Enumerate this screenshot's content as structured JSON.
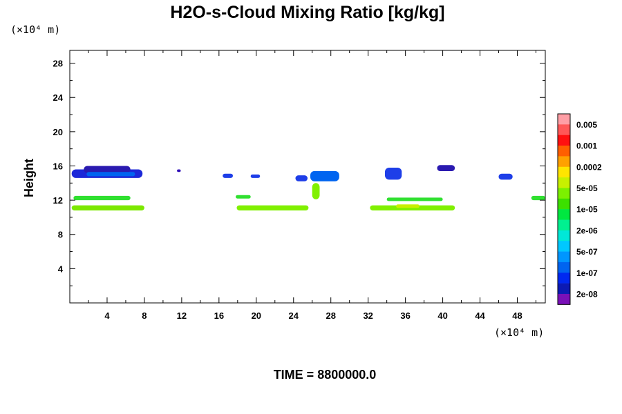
{
  "chart_data": {
    "type": "heatmap",
    "title": "H2O-s-Cloud Mixing Ratio [kg/kg]",
    "xlabel": "",
    "ylabel": "Height",
    "x_unit_label": "(×10⁴ m)",
    "y_unit_label": "(×10⁴ m)",
    "footer": "TIME = 8800000.0",
    "xlim": [
      0,
      51
    ],
    "ylim": [
      0,
      29.5
    ],
    "x_ticks": [
      "4",
      "8",
      "12",
      "16",
      "20",
      "24",
      "28",
      "32",
      "36",
      "40",
      "44",
      "48"
    ],
    "y_ticks": [
      "4",
      "8",
      "12",
      "16",
      "20",
      "24",
      "28"
    ],
    "x_tick_values": [
      4,
      8,
      12,
      16,
      20,
      24,
      28,
      32,
      36,
      40,
      44,
      48
    ],
    "y_tick_values": [
      4,
      8,
      12,
      16,
      20,
      24,
      28
    ],
    "colorbar": {
      "labels": [
        "0.005",
        "0.001",
        "0.0002",
        "5e-05",
        "1e-05",
        "2e-06",
        "5e-07",
        "1e-07",
        "2e-08"
      ],
      "colors": [
        "#ff9fa6",
        "#ff5858",
        "#ff1010",
        "#ff5f00",
        "#ffa100",
        "#ffe500",
        "#c8f000",
        "#7cf000",
        "#3ce000",
        "#00e840",
        "#00f090",
        "#00e8d8",
        "#00c8ff",
        "#0096ff",
        "#0064f0",
        "#0028f0",
        "#0c1ab4",
        "#7a10b8"
      ]
    },
    "regions": [
      {
        "x0": 0.2,
        "x1": 7.8,
        "y0": 14.6,
        "y1": 15.6,
        "level": "2e-08",
        "color": "#1c28d8"
      },
      {
        "x0": 1.5,
        "x1": 6.5,
        "y0": 15.2,
        "y1": 16.0,
        "level": "2e-08",
        "color": "#2a1ab0"
      },
      {
        "x0": 1.8,
        "x1": 7.0,
        "y0": 14.8,
        "y1": 15.3,
        "level": "1e-07",
        "color": "#0064f0"
      },
      {
        "x0": 11.5,
        "x1": 11.9,
        "y0": 15.3,
        "y1": 15.6,
        "level": "2e-08",
        "color": "#3010b8"
      },
      {
        "x0": 16.4,
        "x1": 17.5,
        "y0": 14.6,
        "y1": 15.1,
        "level": "1e-07",
        "color": "#1e3ee8"
      },
      {
        "x0": 19.4,
        "x1": 20.4,
        "y0": 14.6,
        "y1": 15.0,
        "level": "1e-07",
        "color": "#1e3ee8"
      },
      {
        "x0": 24.2,
        "x1": 25.5,
        "y0": 14.2,
        "y1": 14.9,
        "level": "1e-07",
        "color": "#1e3ee8"
      },
      {
        "x0": 25.8,
        "x1": 28.9,
        "y0": 14.2,
        "y1": 15.4,
        "level": "1e-07",
        "color": "#0064f0"
      },
      {
        "x0": 26.0,
        "x1": 26.8,
        "y0": 12.1,
        "y1": 14.0,
        "level": "1e-05",
        "color": "#80f000"
      },
      {
        "x0": 33.8,
        "x1": 35.6,
        "y0": 14.4,
        "y1": 15.8,
        "level": "1e-07",
        "color": "#1e3ee8"
      },
      {
        "x0": 39.4,
        "x1": 41.3,
        "y0": 15.4,
        "y1": 16.1,
        "level": "2e-08",
        "color": "#2a1ab0"
      },
      {
        "x0": 46.0,
        "x1": 47.5,
        "y0": 14.4,
        "y1": 15.1,
        "level": "1e-07",
        "color": "#1e3ee8"
      },
      {
        "x0": 0.2,
        "x1": 8.0,
        "y0": 10.8,
        "y1": 11.4,
        "level": "1e-05",
        "color": "#7ce800"
      },
      {
        "x0": 0.4,
        "x1": 6.5,
        "y0": 12.0,
        "y1": 12.5,
        "level": "2e-06",
        "color": "#30e030"
      },
      {
        "x0": 17.9,
        "x1": 25.6,
        "y0": 10.8,
        "y1": 11.4,
        "level": "1e-05",
        "color": "#80f000"
      },
      {
        "x0": 17.8,
        "x1": 19.4,
        "y0": 12.2,
        "y1": 12.6,
        "level": "2e-06",
        "color": "#30e030"
      },
      {
        "x0": 32.2,
        "x1": 41.3,
        "y0": 10.8,
        "y1": 11.4,
        "level": "1e-05",
        "color": "#80f000"
      },
      {
        "x0": 35.0,
        "x1": 37.5,
        "y0": 11.1,
        "y1": 11.5,
        "level": "5e-05",
        "color": "#c8f000"
      },
      {
        "x0": 34.0,
        "x1": 40.0,
        "y0": 11.9,
        "y1": 12.3,
        "level": "2e-06",
        "color": "#30e030"
      },
      {
        "x0": 49.5,
        "x1": 51.0,
        "y0": 12.0,
        "y1": 12.5,
        "level": "2e-06",
        "color": "#30e030"
      }
    ]
  }
}
